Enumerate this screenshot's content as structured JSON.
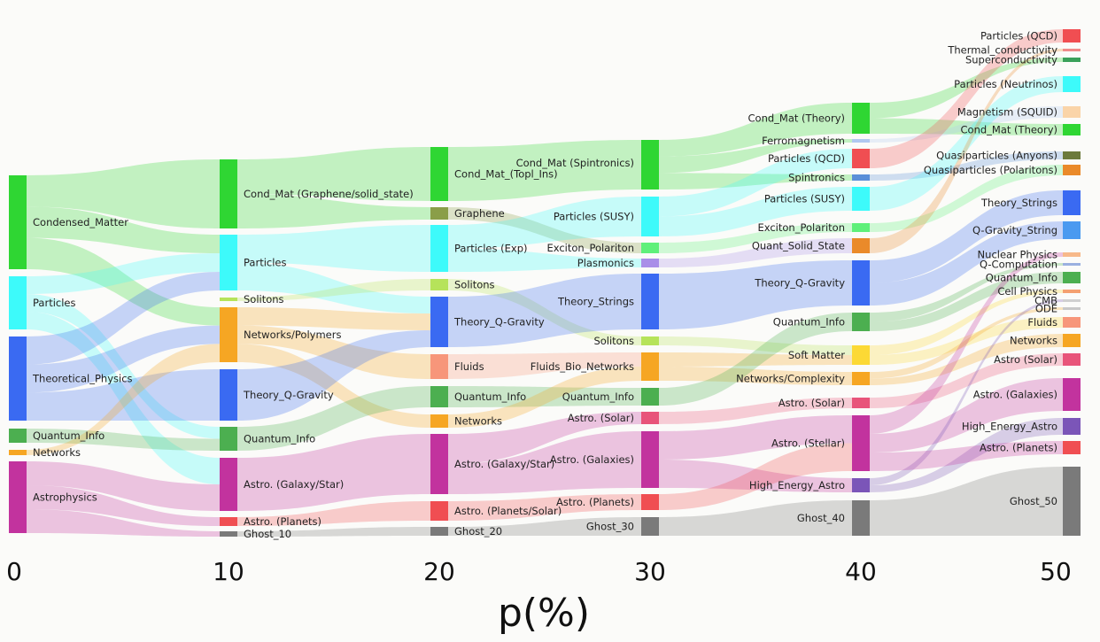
{
  "chart_data": {
    "type": "sankey",
    "xlabel": "p(%)",
    "x_ticks": [
      "0",
      "10",
      "20",
      "30",
      "40",
      "50"
    ],
    "columns": [
      {
        "p": 0,
        "nodes": [
          {
            "id": "c0_cm",
            "label": "Condensed_Matter",
            "color": "#2fd633"
          },
          {
            "id": "c0_part",
            "label": "Particles",
            "color": "#3dfafa"
          },
          {
            "id": "c0_th",
            "label": "Theoretical_Physics",
            "color": "#3a6af2"
          },
          {
            "id": "c0_qi",
            "label": "Quantum_Info",
            "color": "#4caf50"
          },
          {
            "id": "c0_net",
            "label": "Networks",
            "color": "#f6a623"
          },
          {
            "id": "c0_astro",
            "label": "Astrophysics",
            "color": "#c2339e"
          }
        ]
      },
      {
        "p": 10,
        "nodes": [
          {
            "id": "c1_cm",
            "label": "Cond_Mat (Graphene/solid_state)",
            "color": "#2fd633"
          },
          {
            "id": "c1_part",
            "label": "Particles",
            "color": "#3dfafa"
          },
          {
            "id": "c1_sol",
            "label": "Solitons",
            "color": "#b6e35a"
          },
          {
            "id": "c1_net",
            "label": "Networks/Polymers",
            "color": "#f6a623"
          },
          {
            "id": "c1_tq",
            "label": "Theory_Q-Gravity",
            "color": "#3a6af2"
          },
          {
            "id": "c1_qi",
            "label": "Quantum_Info",
            "color": "#4caf50"
          },
          {
            "id": "c1_astro",
            "label": "Astro. (Galaxy/Star)",
            "color": "#c2339e"
          },
          {
            "id": "c1_planets",
            "label": "Astro. (Planets)",
            "color": "#f04e52"
          },
          {
            "id": "c1_ghost",
            "label": "Ghost_10",
            "color": "#7a7a7a"
          }
        ]
      },
      {
        "p": 20,
        "nodes": [
          {
            "id": "c2_cm",
            "label": "Cond_Mat_(Topl_Ins)",
            "color": "#2fd633"
          },
          {
            "id": "c2_gr",
            "label": "Graphene",
            "color": "#8a9e48"
          },
          {
            "id": "c2_pexp",
            "label": "Particles (Exp)",
            "color": "#3dfafa"
          },
          {
            "id": "c2_sol",
            "label": "Solitons",
            "color": "#b6e35a"
          },
          {
            "id": "c2_tq",
            "label": "Theory_Q-Gravity",
            "color": "#3a6af2"
          },
          {
            "id": "c2_fl",
            "label": "Fluids",
            "color": "#f7967a"
          },
          {
            "id": "c2_qi",
            "label": "Quantum_Info",
            "color": "#4caf50"
          },
          {
            "id": "c2_net",
            "label": "Networks",
            "color": "#f6a623"
          },
          {
            "id": "c2_astro",
            "label": "Astro. (Galaxy/Star)",
            "color": "#c2339e"
          },
          {
            "id": "c2_planets",
            "label": "Astro. (Planets/Solar)",
            "color": "#f04e52"
          },
          {
            "id": "c2_ghost",
            "label": "Ghost_20",
            "color": "#7a7a7a"
          }
        ]
      },
      {
        "p": 30,
        "nodes": [
          {
            "id": "c3_cm",
            "label": "Cond_Mat (Spintronics)",
            "color": "#2fd633"
          },
          {
            "id": "c3_susy",
            "label": "Particles (SUSY)",
            "color": "#3dfafa"
          },
          {
            "id": "c3_exc",
            "label": "Exciton_Polariton",
            "color": "#5ff07a"
          },
          {
            "id": "c3_pl",
            "label": "Plasmonics",
            "color": "#a98ee8"
          },
          {
            "id": "c3_str",
            "label": "Theory_Strings",
            "color": "#3a6af2"
          },
          {
            "id": "c3_sol",
            "label": "Solitons",
            "color": "#b6e35a"
          },
          {
            "id": "c3_fbn",
            "label": "Fluids_Bio_Networks",
            "color": "#f6a623"
          },
          {
            "id": "c3_qi",
            "label": "Quantum_Info",
            "color": "#4caf50"
          },
          {
            "id": "c3_solar",
            "label": "Astro. (Solar)",
            "color": "#e8547a"
          },
          {
            "id": "c3_gal",
            "label": "Astro. (Galaxies)",
            "color": "#c2339e"
          },
          {
            "id": "c3_planets",
            "label": "Astro. (Planets)",
            "color": "#f04e52"
          },
          {
            "id": "c3_ghost",
            "label": "Ghost_30",
            "color": "#7a7a7a"
          }
        ]
      },
      {
        "p": 40,
        "nodes": [
          {
            "id": "c4_cm",
            "label": "Cond_Mat (Theory)",
            "color": "#2fd633"
          },
          {
            "id": "c4_fm",
            "label": "Ferromagnetism",
            "color": "#b0c8f0"
          },
          {
            "id": "c4_qcd",
            "label": "Particles (QCD)",
            "color": "#f04e52"
          },
          {
            "id": "c4_spin",
            "label": "Spintronics",
            "color": "#5a8fd8"
          },
          {
            "id": "c4_susy",
            "label": "Particles (SUSY)",
            "color": "#3dfafa"
          },
          {
            "id": "c4_exc",
            "label": "Exciton_Polariton",
            "color": "#5ff07a"
          },
          {
            "id": "c4_qss",
            "label": "Quant_Solid_State",
            "color": "#ea8a2a"
          },
          {
            "id": "c4_tq",
            "label": "Theory_Q-Gravity",
            "color": "#3a6af2"
          },
          {
            "id": "c4_qi",
            "label": "Quantum_Info",
            "color": "#4caf50"
          },
          {
            "id": "c4_soft",
            "label": "Soft Matter",
            "color": "#fcd935"
          },
          {
            "id": "c4_nc",
            "label": "Networks/Complexity",
            "color": "#f6a623"
          },
          {
            "id": "c4_solar",
            "label": "Astro. (Solar)",
            "color": "#e8547a"
          },
          {
            "id": "c4_stel",
            "label": "Astro. (Stellar)",
            "color": "#c2339e"
          },
          {
            "id": "c4_hea",
            "label": "High_Energy_Astro",
            "color": "#7b55b8"
          },
          {
            "id": "c4_ghost",
            "label": "Ghost_40",
            "color": "#7a7a7a"
          }
        ]
      },
      {
        "p": 50,
        "nodes": [
          {
            "id": "c5_qcd",
            "label": "Particles (QCD)",
            "color": "#f04e52"
          },
          {
            "id": "c5_tc",
            "label": "Thermal_conductivity",
            "color": "#f08a8a"
          },
          {
            "id": "c5_sc",
            "label": "Superconductivity",
            "color": "#3aa05a"
          },
          {
            "id": "c5_nu",
            "label": "Particles (Neutrinos)",
            "color": "#3dfafa"
          },
          {
            "id": "c5_squid",
            "label": "Magnetism (SQUID)",
            "color": "#fad4a8"
          },
          {
            "id": "c5_cmt",
            "label": "Cond_Mat (Theory)",
            "color": "#2fd633"
          },
          {
            "id": "c5_any",
            "label": "Quasiparticles (Anyons)",
            "color": "#6c7a3c"
          },
          {
            "id": "c5_pol",
            "label": "Quasiparticles (Polaritons)",
            "color": "#ea8a2a"
          },
          {
            "id": "c5_str",
            "label": "Theory_Strings",
            "color": "#3a6af2"
          },
          {
            "id": "c5_qgs",
            "label": "Q-Gravity_String",
            "color": "#4a9af0"
          },
          {
            "id": "c5_np",
            "label": "Nuclear Physics",
            "color": "#f7b98a"
          },
          {
            "id": "c5_qc",
            "label": "Q-Computation",
            "color": "#9ab0e0"
          },
          {
            "id": "c5_qi",
            "label": "Quantum_Info",
            "color": "#4caf50"
          },
          {
            "id": "c5_cell",
            "label": "Cell Physics",
            "color": "#f4a070"
          },
          {
            "id": "c5_cmb",
            "label": "CMB",
            "color": "#d0d0d0"
          },
          {
            "id": "c5_ode",
            "label": "ODE",
            "color": "#c8c8c8"
          },
          {
            "id": "c5_fl",
            "label": "Fluids",
            "color": "#f7967a"
          },
          {
            "id": "c5_net",
            "label": "Networks",
            "color": "#f6a623"
          },
          {
            "id": "c5_solar",
            "label": "Astro (Solar)",
            "color": "#e8547a"
          },
          {
            "id": "c5_gal",
            "label": "Astro. (Galaxies)",
            "color": "#c2339e"
          },
          {
            "id": "c5_hea",
            "label": "High_Energy_Astro",
            "color": "#7b55b8"
          },
          {
            "id": "c5_planets",
            "label": "Astro. (Planets)",
            "color": "#f04e52"
          },
          {
            "id": "c5_ghost",
            "label": "Ghost_50",
            "color": "#7a7a7a"
          }
        ]
      }
    ],
    "links": [
      [
        "c0_cm",
        "c1_cm"
      ],
      [
        "c0_cm",
        "c1_net"
      ],
      [
        "c0_cm",
        "c1_part"
      ],
      [
        "c0_part",
        "c1_part"
      ],
      [
        "c0_part",
        "c1_qi"
      ],
      [
        "c0_part",
        "c1_astro"
      ],
      [
        "c0_th",
        "c1_tq"
      ],
      [
        "c0_th",
        "c1_net"
      ],
      [
        "c0_th",
        "c1_part"
      ],
      [
        "c0_qi",
        "c1_qi"
      ],
      [
        "c0_net",
        "c1_net"
      ],
      [
        "c0_astro",
        "c1_astro"
      ],
      [
        "c0_astro",
        "c1_planets"
      ],
      [
        "c0_astro",
        "c1_ghost"
      ],
      [
        "c1_cm",
        "c2_cm"
      ],
      [
        "c1_cm",
        "c2_gr"
      ],
      [
        "c1_part",
        "c2_pexp"
      ],
      [
        "c1_part",
        "c2_tq"
      ],
      [
        "c1_sol",
        "c2_sol"
      ],
      [
        "c1_net",
        "c2_fl"
      ],
      [
        "c1_net",
        "c2_net"
      ],
      [
        "c1_net",
        "c2_tq"
      ],
      [
        "c1_tq",
        "c2_tq"
      ],
      [
        "c1_qi",
        "c2_qi"
      ],
      [
        "c1_astro",
        "c2_astro"
      ],
      [
        "c1_planets",
        "c2_planets"
      ],
      [
        "c1_ghost",
        "c2_ghost"
      ],
      [
        "c2_cm",
        "c3_cm"
      ],
      [
        "c2_gr",
        "c3_exc"
      ],
      [
        "c2_pexp",
        "c3_susy"
      ],
      [
        "c2_pexp",
        "c3_pl"
      ],
      [
        "c2_sol",
        "c3_sol"
      ],
      [
        "c2_tq",
        "c3_str"
      ],
      [
        "c2_fl",
        "c3_fbn"
      ],
      [
        "c2_qi",
        "c3_qi"
      ],
      [
        "c2_net",
        "c3_fbn"
      ],
      [
        "c2_astro",
        "c3_gal"
      ],
      [
        "c2_astro",
        "c3_solar"
      ],
      [
        "c2_planets",
        "c3_planets"
      ],
      [
        "c2_ghost",
        "c3_ghost"
      ],
      [
        "c3_cm",
        "c4_cm"
      ],
      [
        "c3_cm",
        "c4_spin"
      ],
      [
        "c3_cm",
        "c4_fm"
      ],
      [
        "c3_susy",
        "c4_susy"
      ],
      [
        "c3_susy",
        "c4_qcd"
      ],
      [
        "c3_exc",
        "c4_exc"
      ],
      [
        "c3_pl",
        "c4_qss"
      ],
      [
        "c3_str",
        "c4_tq"
      ],
      [
        "c3_sol",
        "c4_soft"
      ],
      [
        "c3_fbn",
        "c4_nc"
      ],
      [
        "c3_fbn",
        "c4_soft"
      ],
      [
        "c3_qi",
        "c4_qi"
      ],
      [
        "c3_solar",
        "c4_solar"
      ],
      [
        "c3_gal",
        "c4_stel"
      ],
      [
        "c3_gal",
        "c4_hea"
      ],
      [
        "c3_planets",
        "c4_stel"
      ],
      [
        "c3_ghost",
        "c4_ghost"
      ],
      [
        "c4_cm",
        "c5_cmt"
      ],
      [
        "c4_cm",
        "c5_sc"
      ],
      [
        "c4_fm",
        "c5_squid"
      ],
      [
        "c4_qcd",
        "c5_qcd"
      ],
      [
        "c4_spin",
        "c5_any"
      ],
      [
        "c4_susy",
        "c5_nu"
      ],
      [
        "c4_exc",
        "c5_pol"
      ],
      [
        "c4_qss",
        "c5_tc"
      ],
      [
        "c4_tq",
        "c5_str"
      ],
      [
        "c4_tq",
        "c5_qgs"
      ],
      [
        "c4_qi",
        "c5_qi"
      ],
      [
        "c4_qi",
        "c5_qc"
      ],
      [
        "c4_soft",
        "c5_cell"
      ],
      [
        "c4_soft",
        "c5_fl"
      ],
      [
        "c4_nc",
        "c5_net"
      ],
      [
        "c4_nc",
        "c5_ode"
      ],
      [
        "c4_solar",
        "c5_solar"
      ],
      [
        "c4_stel",
        "c5_gal"
      ],
      [
        "c4_stel",
        "c5_np"
      ],
      [
        "c4_hea",
        "c5_hea"
      ],
      [
        "c4_hea",
        "c5_cmb"
      ],
      [
        "c4_stel",
        "c5_planets"
      ],
      [
        "c4_ghost",
        "c5_ghost"
      ]
    ]
  }
}
